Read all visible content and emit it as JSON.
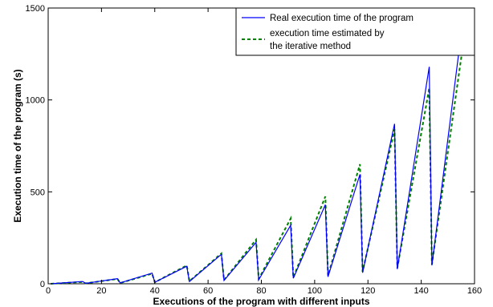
{
  "chart_data": {
    "type": "line",
    "title": "",
    "xlabel": "Executions of the program with different inputs",
    "ylabel": "Execution time of the program (s)",
    "xlim": [
      0,
      160
    ],
    "ylim": [
      0,
      1500
    ],
    "xticks": [
      0,
      20,
      40,
      60,
      80,
      100,
      120,
      140,
      160
    ],
    "yticks": [
      0,
      500,
      1000,
      1500
    ],
    "grid": false,
    "legend": "top-right",
    "series": [
      {
        "name": "Real execution time of the program",
        "color": "#0000ff",
        "dash": "solid",
        "x": [
          1,
          13,
          14,
          26,
          27,
          39,
          40,
          52,
          53,
          65,
          66,
          78,
          79,
          91,
          92,
          104,
          105,
          117,
          118,
          130,
          131,
          143,
          144,
          156
        ],
        "y": [
          0,
          12,
          2,
          28,
          5,
          58,
          8,
          95,
          12,
          160,
          18,
          225,
          22,
          318,
          30,
          430,
          38,
          595,
          60,
          870,
          80,
          1180,
          100,
          1475
        ]
      },
      {
        "name_lines": [
          "execution time estimated by",
          "the iterative method"
        ],
        "color": "#008000",
        "dash": "dashed",
        "x": [
          1,
          13,
          14,
          26,
          27,
          39,
          40,
          52,
          53,
          65,
          66,
          78,
          79,
          91,
          92,
          104,
          105,
          117,
          118,
          130,
          131,
          143,
          144,
          156
        ],
        "y": [
          0,
          10,
          2,
          26,
          4,
          55,
          8,
          100,
          14,
          165,
          20,
          240,
          26,
          355,
          34,
          475,
          44,
          650,
          65,
          840,
          85,
          1065,
          105,
          1330
        ]
      }
    ]
  }
}
